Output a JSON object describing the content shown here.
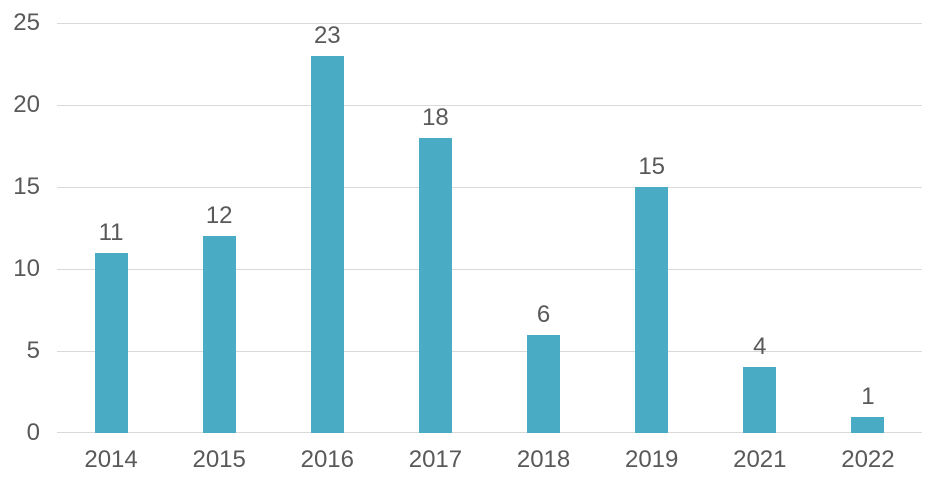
{
  "chart_data": {
    "type": "bar",
    "categories": [
      "2014",
      "2015",
      "2016",
      "2017",
      "2018",
      "2019",
      "2021",
      "2022"
    ],
    "values": [
      11,
      12,
      23,
      18,
      6,
      15,
      4,
      1
    ],
    "data_labels": [
      "11",
      "12",
      "23",
      "18",
      "6",
      "15",
      "4",
      "1"
    ],
    "title": "",
    "xlabel": "",
    "ylabel": "",
    "ylim": [
      0,
      25
    ],
    "yticks": [
      0,
      5,
      10,
      15,
      20,
      25
    ],
    "grid": true,
    "legend": false,
    "bar_color": "#4AABC4",
    "gridline_color": "#D9D9D9",
    "text_color": "#595959",
    "background_color": "#FFFFFF"
  }
}
